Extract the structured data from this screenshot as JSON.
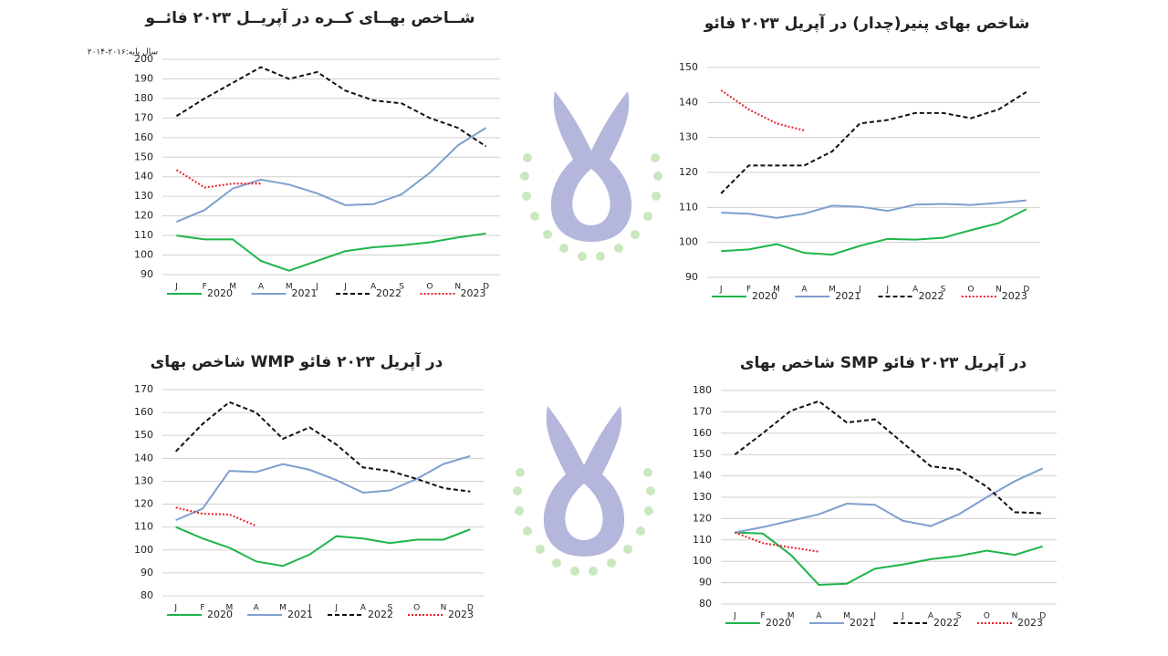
{
  "chart_data": [
    {
      "type": "line",
      "title": "شــاخص بهــای کــره  در آپریــل ۲۰۲۳ فائــو",
      "note": "سال پایه:۲۰۱۶-۲۰۱۴",
      "categories": [
        "J",
        "F",
        "M",
        "A",
        "M",
        "J",
        "J",
        "A",
        "S",
        "O",
        "N",
        "D"
      ],
      "ylim": [
        90,
        200
      ],
      "yticks": [
        90,
        100,
        110,
        120,
        130,
        140,
        150,
        160,
        170,
        180,
        190,
        200
      ],
      "grid": true,
      "series": [
        {
          "name": "2020",
          "color": "#1fb44a",
          "line_style": "solid",
          "values": [
            110,
            108,
            108,
            97,
            92,
            97,
            102,
            104,
            105,
            106.5,
            109,
            111
          ]
        },
        {
          "name": "2021",
          "color": "#7f9fcf",
          "line_style": "solid",
          "values": [
            117,
            123,
            134,
            138.5,
            136,
            131.5,
            125.5,
            126,
            131,
            142,
            156,
            165
          ]
        },
        {
          "name": "2022",
          "color": "#111111",
          "line_style": "dashed",
          "values": [
            171,
            180,
            188,
            196,
            190,
            193.5,
            184,
            179,
            177.5,
            170,
            165,
            155.5
          ]
        },
        {
          "name": "2023",
          "color": "#e8202a",
          "line_style": "dotted",
          "values": [
            143.5,
            134.5,
            136.5,
            136.5,
            null,
            null,
            null,
            null,
            null,
            null,
            null,
            null
          ]
        }
      ]
    },
    {
      "type": "line",
      "title": "شاخص بهای پنیر(چدار)  در آپریل ۲۰۲۳ فائو",
      "categories": [
        "J",
        "F",
        "M",
        "A",
        "M",
        "J",
        "J",
        "A",
        "S",
        "O",
        "N",
        "D"
      ],
      "ylim": [
        90,
        150
      ],
      "yticks": [
        90,
        100,
        110,
        120,
        130,
        140,
        150
      ],
      "grid": true,
      "series": [
        {
          "name": "2020",
          "color": "#1fb44a",
          "line_style": "solid",
          "values": [
            97.5,
            98,
            99.5,
            97,
            96.5,
            99,
            101,
            100.8,
            101.3,
            103.5,
            105.5,
            109.5
          ]
        },
        {
          "name": "2021",
          "color": "#7f9fcf",
          "line_style": "solid",
          "values": [
            108.5,
            108.2,
            107,
            108.2,
            110.5,
            110.2,
            109,
            110.8,
            111,
            110.7,
            111.3,
            112
          ]
        },
        {
          "name": "2022",
          "color": "#111111",
          "line_style": "dashed",
          "values": [
            114,
            122,
            122,
            122,
            126,
            134,
            135,
            137,
            137,
            135.5,
            138,
            143
          ]
        },
        {
          "name": "2023",
          "color": "#e8202a",
          "line_style": "dotted",
          "values": [
            143.5,
            138,
            134,
            132,
            null,
            null,
            null,
            null,
            null,
            null,
            null,
            null
          ]
        }
      ]
    },
    {
      "type": "line",
      "title": "شاخص بهای WMP  در آپریل ۲۰۲۳ فائو",
      "categories": [
        "J",
        "F",
        "M",
        "A",
        "M",
        "J",
        "J",
        "A",
        "S",
        "O",
        "N",
        "D"
      ],
      "ylim": [
        80,
        170
      ],
      "yticks": [
        80,
        90,
        100,
        110,
        120,
        130,
        140,
        150,
        160,
        170
      ],
      "grid": true,
      "series": [
        {
          "name": "2020",
          "color": "#1fb44a",
          "line_style": "solid",
          "values": [
            110,
            105,
            101,
            95,
            93,
            98,
            106,
            105,
            103,
            104.5,
            104.5,
            109
          ]
        },
        {
          "name": "2021",
          "color": "#7f9fcf",
          "line_style": "solid",
          "values": [
            113,
            118,
            134.5,
            134,
            137.5,
            135,
            130.5,
            125,
            126,
            131,
            137.5,
            141
          ]
        },
        {
          "name": "2022",
          "color": "#111111",
          "line_style": "dashed",
          "values": [
            143,
            155,
            164.5,
            160,
            148.5,
            153.5,
            146,
            136,
            134.5,
            131,
            127,
            125.5
          ]
        },
        {
          "name": "2023",
          "color": "#e8202a",
          "line_style": "dotted",
          "values": [
            118.5,
            115.8,
            115.5,
            110.5,
            null,
            null,
            null,
            null,
            null,
            null,
            null,
            null
          ]
        }
      ]
    },
    {
      "type": "line",
      "title": "شاخص بهای SMP  در آپریل ۲۰۲۳ فائو",
      "categories": [
        "J",
        "F",
        "M",
        "A",
        "M",
        "J",
        "J",
        "A",
        "S",
        "O",
        "N",
        "D"
      ],
      "ylim": [
        80,
        180
      ],
      "yticks": [
        80,
        90,
        100,
        110,
        120,
        130,
        140,
        150,
        160,
        170,
        180
      ],
      "grid": true,
      "series": [
        {
          "name": "2020",
          "color": "#1fb44a",
          "line_style": "solid",
          "values": [
            113.5,
            113,
            103,
            89,
            89.5,
            96.5,
            98.5,
            101,
            102.5,
            105,
            103,
            107
          ]
        },
        {
          "name": "2021",
          "color": "#7f9fcf",
          "line_style": "solid",
          "values": [
            113.5,
            116,
            119,
            122,
            127,
            126.5,
            119,
            116.5,
            122,
            130,
            137.5,
            143.5
          ]
        },
        {
          "name": "2022",
          "color": "#111111",
          "line_style": "dashed",
          "values": [
            150,
            160,
            170.5,
            175,
            165,
            166.5,
            155.5,
            144.5,
            143,
            135,
            123,
            122.5
          ]
        },
        {
          "name": "2023",
          "color": "#e8202a",
          "line_style": "dotted",
          "values": [
            113.5,
            108.5,
            106.5,
            104.5,
            null,
            null,
            null,
            null,
            null,
            null,
            null,
            null
          ]
        }
      ]
    }
  ]
}
